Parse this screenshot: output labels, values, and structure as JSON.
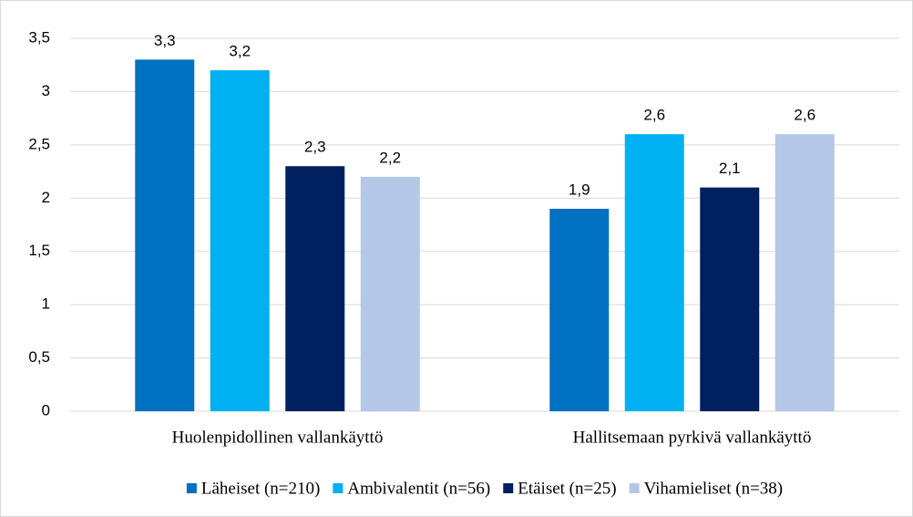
{
  "chart_data": {
    "type": "bar",
    "categories": [
      "Huolenpidollinen vallankäyttö",
      "Hallitsemaan pyrkivä vallankäyttö"
    ],
    "series": [
      {
        "name": "Läheiset (n=210)",
        "color": "#0070c0",
        "values": [
          3.3,
          1.9
        ],
        "value_labels": [
          "3,3",
          "1,9"
        ]
      },
      {
        "name": "Ambivalentit (n=56)",
        "color": "#00b0f0",
        "values": [
          3.2,
          2.6
        ],
        "value_labels": [
          "3,2",
          "2,6"
        ]
      },
      {
        "name": "Etäiset (n=25)",
        "color": "#002060",
        "values": [
          2.3,
          2.1
        ],
        "value_labels": [
          "2,3",
          "2,1"
        ]
      },
      {
        "name": "Vihamieliset (n=38)",
        "color": "#b4c7e7",
        "values": [
          2.2,
          2.6
        ],
        "value_labels": [
          "2,2",
          "2,6"
        ]
      }
    ],
    "ylim": [
      0,
      3.5
    ],
    "yticks": [
      0,
      {
        "value": 0.5,
        "label": "0,5"
      },
      1,
      {
        "value": 1.5,
        "label": "1,5"
      },
      2,
      {
        "value": 2.5,
        "label": "2,5"
      },
      3,
      {
        "value": 3.5,
        "label": "3,5"
      }
    ],
    "grid": true,
    "legend": "bottom"
  }
}
